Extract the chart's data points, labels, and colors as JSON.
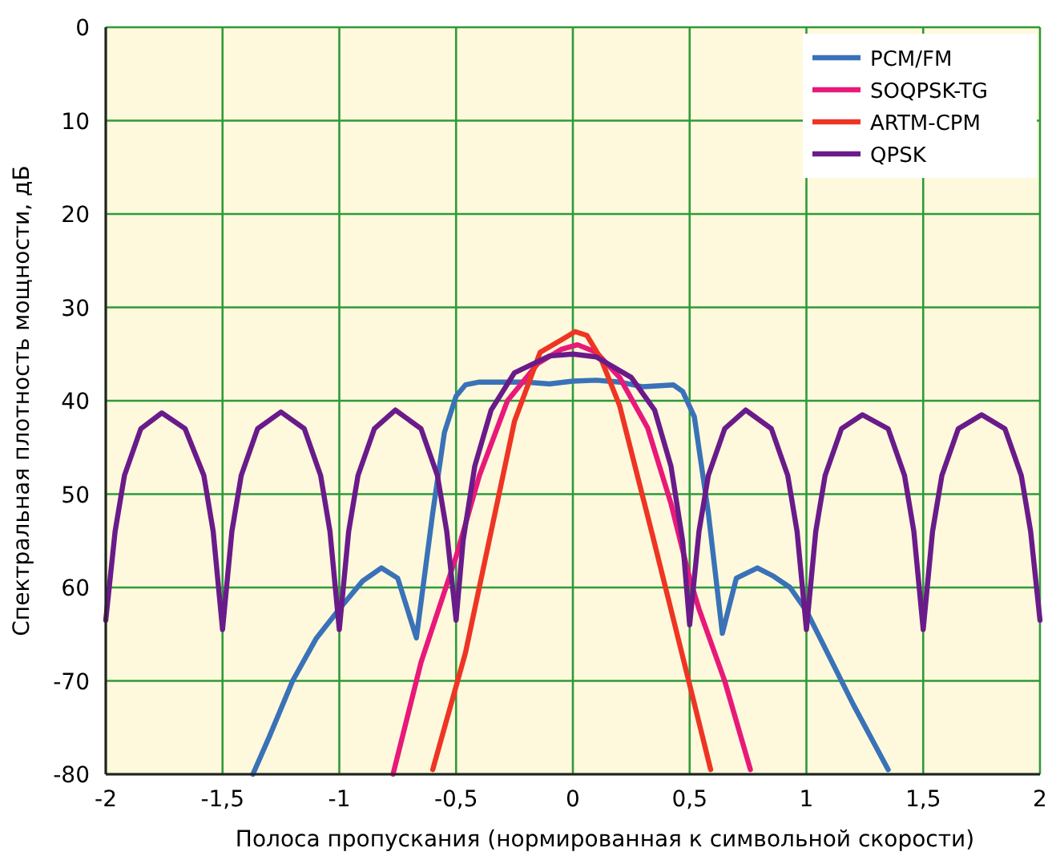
{
  "chart_data": {
    "type": "line",
    "xlabel": "Полоса пропускания (нормированная к символьной скорости)",
    "ylabel": "Спектральная плотность мощности, дБ",
    "xlim": [
      -2,
      2
    ],
    "ylim": [
      -80,
      0
    ],
    "xticks": [
      -2,
      {
        "value": -1.5,
        "label": "-1,5"
      },
      -1,
      {
        "value": -0.5,
        "label": "-0,5"
      },
      0,
      {
        "value": 0.5,
        "label": "0,5"
      },
      1,
      {
        "value": 1.5,
        "label": "1,5"
      },
      2
    ],
    "yticks": [
      {
        "value": 0,
        "label": "0"
      },
      {
        "value": -10,
        "label": "10"
      },
      {
        "value": -20,
        "label": "20"
      },
      {
        "value": -30,
        "label": "30"
      },
      {
        "value": -40,
        "label": "40"
      },
      {
        "value": -50,
        "label": "50"
      },
      {
        "value": -60,
        "label": "60"
      },
      -70,
      -80
    ],
    "grid": true,
    "legend": "top right",
    "line_style": "solid",
    "series": [
      {
        "name": "PCM/FM",
        "color": "#3a72b8",
        "x": [
          -1.37,
          -1.3,
          -1.2,
          -1.1,
          -1,
          -0.9,
          -0.82,
          -0.75,
          -0.67,
          -0.6,
          -0.55,
          -0.5,
          -0.46,
          -0.4,
          -0.2,
          -0.1,
          0,
          0.1,
          0.2,
          0.3,
          0.43,
          0.47,
          0.52,
          0.58,
          0.64,
          0.7,
          0.79,
          0.86,
          0.93,
          1,
          1.1,
          1.2,
          1.35
        ],
        "values": [
          -80,
          -76,
          -70,
          -65.5,
          -62.3,
          -59.3,
          -57.9,
          -59,
          -65.4,
          -52,
          -43.4,
          -39.5,
          -38.3,
          -38,
          -38,
          -38.2,
          -37.9,
          -37.8,
          -38,
          -38.5,
          -38.3,
          -39,
          -41.7,
          -52,
          -64.9,
          -59,
          -57.9,
          -58.8,
          -60,
          -62.5,
          -67.5,
          -72.5,
          -79.5
        ]
      },
      {
        "name": "SOQPSK-TG",
        "color": "#e8197a",
        "x": [
          -0.77,
          -0.65,
          -0.5,
          -0.4,
          -0.28,
          -0.15,
          -0.05,
          0.02,
          0.1,
          0.2,
          0.32,
          0.42,
          0.5,
          0.54,
          0.65,
          0.76
        ],
        "values": [
          -80,
          -68,
          -56.7,
          -48,
          -40,
          -36,
          -34.5,
          -34,
          -34.8,
          -37.5,
          -42.9,
          -51,
          -59,
          -62.3,
          -70,
          -79.5
        ]
      },
      {
        "name": "ARTM-CPM",
        "color": "#ee3524",
        "x": [
          -0.6,
          -0.46,
          -0.35,
          -0.25,
          -0.14,
          -0.05,
          0.01,
          0.06,
          0.12,
          0.2,
          0.34,
          0.5,
          0.59
        ],
        "values": [
          -79.5,
          -67,
          -54,
          -42.2,
          -34.8,
          -33.5,
          -32.6,
          -33,
          -35.5,
          -40.5,
          -54.3,
          -70.4,
          -79.5
        ]
      },
      {
        "name": "QPSK",
        "color": "#6a1b8a",
        "x": [
          -2,
          -1.96,
          -1.92,
          -1.85,
          -1.76,
          -1.66,
          -1.58,
          -1.54,
          -1.5,
          -1.46,
          -1.42,
          -1.35,
          -1.25,
          -1.15,
          -1.08,
          -1.04,
          -1,
          -0.96,
          -0.92,
          -0.85,
          -0.76,
          -0.65,
          -0.58,
          -0.54,
          -0.5,
          -0.47,
          -0.42,
          -0.35,
          -0.25,
          -0.1,
          0,
          0.1,
          0.25,
          0.35,
          0.42,
          0.47,
          0.5,
          0.54,
          0.58,
          0.65,
          0.74,
          0.85,
          0.92,
          0.96,
          1,
          1.04,
          1.08,
          1.15,
          1.24,
          1.35,
          1.42,
          1.46,
          1.5,
          1.54,
          1.58,
          1.65,
          1.75,
          1.85,
          1.92,
          1.96,
          2
        ],
        "values": [
          -63.5,
          -54,
          -48,
          -43,
          -41.3,
          -43,
          -48,
          -54,
          -64.5,
          -54,
          -48,
          -43,
          -41.2,
          -43,
          -48,
          -54,
          -64.5,
          -54,
          -48,
          -43,
          -41,
          -43,
          -48,
          -54,
          -63.5,
          -55,
          -47,
          -41,
          -37,
          -35.2,
          -35,
          -35.3,
          -37.5,
          -41,
          -47,
          -55,
          -64,
          -54,
          -48,
          -43,
          -41,
          -43,
          -48,
          -54,
          -64.5,
          -54,
          -48,
          -43,
          -41.5,
          -43,
          -48,
          -54,
          -64.5,
          -54,
          -48,
          -43,
          -41.5,
          -43,
          -48,
          -54,
          -63.5
        ]
      }
    ]
  }
}
